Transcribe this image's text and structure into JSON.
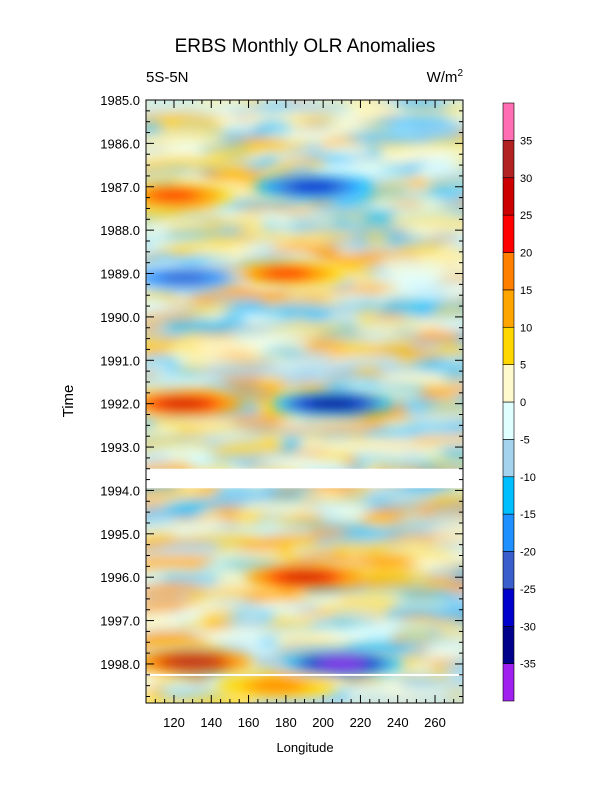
{
  "chart_data": {
    "type": "heatmap",
    "title": "ERBS Monthly OLR Anomalies",
    "subtitle_left": "5S-5N",
    "subtitle_right": "W/m",
    "subtitle_right_sup": "2",
    "xlabel": "Longitude",
    "ylabel": "Time",
    "xlim": [
      105,
      275
    ],
    "ylim": [
      1985.0,
      1998.9
    ],
    "x_ticks": [
      120,
      140,
      160,
      180,
      200,
      220,
      240,
      260
    ],
    "x_tick_labels": [
      "120",
      "140",
      "160",
      "180",
      "200",
      "220",
      "240",
      "260"
    ],
    "y_ticks": [
      1985,
      1986,
      1987,
      1988,
      1989,
      1990,
      1991,
      1992,
      1993,
      1994,
      1995,
      1996,
      1997,
      1998
    ],
    "y_tick_labels": [
      "1985.0",
      "1986.0",
      "1987.0",
      "1988.0",
      "1989.0",
      "1990.0",
      "1991.0",
      "1992.0",
      "1993.0",
      "1994.0",
      "1995.0",
      "1996.0",
      "1997.0",
      "1998.0"
    ],
    "missing_data_bands": [
      [
        1993.5,
        1993.95
      ],
      [
        1998.23,
        1998.27
      ]
    ],
    "colorbar": {
      "levels": [
        -35,
        -30,
        -25,
        -20,
        -15,
        -10,
        -5,
        0,
        5,
        10,
        15,
        20,
        25,
        30,
        35
      ],
      "labels": [
        "-35",
        "-30",
        "-25",
        "-20",
        "-15",
        "-10",
        "-5",
        "0",
        "5",
        "10",
        "15",
        "20",
        "25",
        "30",
        "35"
      ],
      "colors": [
        "#a020f0",
        "#00008b",
        "#0000cd",
        "#3a5fcd",
        "#1e90ff",
        "#00bfff",
        "#a4d3ee",
        "#e0ffff",
        "#fffacd",
        "#ffd700",
        "#ffa500",
        "#ff7f00",
        "#ff0000",
        "#cd0000",
        "#b22222",
        "#ff6eb4"
      ]
    },
    "anomaly_features": [
      {
        "lon": 195,
        "time": 1987.0,
        "value": -30
      },
      {
        "lon": 120,
        "time": 1987.2,
        "value": 22
      },
      {
        "lon": 180,
        "time": 1989.0,
        "value": 22
      },
      {
        "lon": 125,
        "time": 1989.1,
        "value": -25
      },
      {
        "lon": 125,
        "time": 1992.0,
        "value": 28
      },
      {
        "lon": 205,
        "time": 1992.0,
        "value": -35
      },
      {
        "lon": 190,
        "time": 1996.0,
        "value": 27
      },
      {
        "lon": 130,
        "time": 1997.95,
        "value": 33
      },
      {
        "lon": 210,
        "time": 1998.0,
        "value": -37
      },
      {
        "lon": 175,
        "time": 1998.5,
        "value": 15
      }
    ]
  }
}
